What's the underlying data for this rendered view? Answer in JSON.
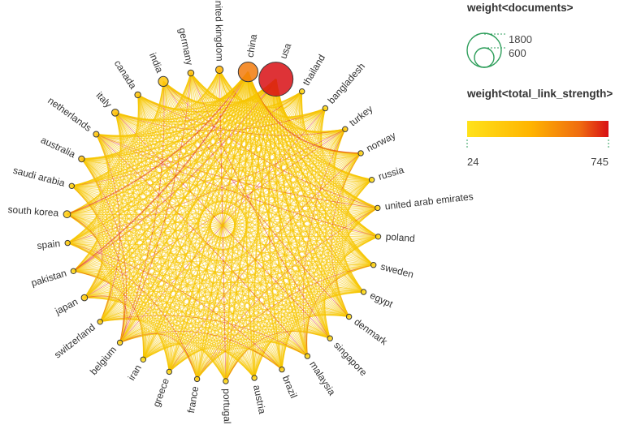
{
  "network": {
    "nodes": [
      {
        "id": "usa",
        "label": "usa",
        "weight_documents": 1800,
        "weight_total_link_strength": 745
      },
      {
        "id": "thailand",
        "label": "thailand",
        "weight_documents": 12,
        "weight_total_link_strength": 60
      },
      {
        "id": "bangladesh",
        "label": "bangladesh",
        "weight_documents": 10,
        "weight_total_link_strength": 55
      },
      {
        "id": "turkey",
        "label": "turkey",
        "weight_documents": 40,
        "weight_total_link_strength": 110
      },
      {
        "id": "norway",
        "label": "norway",
        "weight_documents": 14,
        "weight_total_link_strength": 70
      },
      {
        "id": "russia",
        "label": "russia",
        "weight_documents": 12,
        "weight_total_link_strength": 45
      },
      {
        "id": "uae",
        "label": "united arab emirates",
        "weight_documents": 12,
        "weight_total_link_strength": 60
      },
      {
        "id": "poland",
        "label": "poland",
        "weight_documents": 14,
        "weight_total_link_strength": 55
      },
      {
        "id": "sweden",
        "label": "sweden",
        "weight_documents": 14,
        "weight_total_link_strength": 75
      },
      {
        "id": "egypt",
        "label": "egypt",
        "weight_documents": 12,
        "weight_total_link_strength": 50
      },
      {
        "id": "denmark",
        "label": "denmark",
        "weight_documents": 12,
        "weight_total_link_strength": 60
      },
      {
        "id": "singapore",
        "label": "singapore",
        "weight_documents": 14,
        "weight_total_link_strength": 65
      },
      {
        "id": "malaysia",
        "label": "malaysia",
        "weight_documents": 14,
        "weight_total_link_strength": 55
      },
      {
        "id": "brazil",
        "label": "brazil",
        "weight_documents": 30,
        "weight_total_link_strength": 85
      },
      {
        "id": "austria",
        "label": "austria",
        "weight_documents": 12,
        "weight_total_link_strength": 60
      },
      {
        "id": "portugal",
        "label": "portugal",
        "weight_documents": 14,
        "weight_total_link_strength": 55
      },
      {
        "id": "france",
        "label": "france",
        "weight_documents": 30,
        "weight_total_link_strength": 110
      },
      {
        "id": "greece",
        "label": "greece",
        "weight_documents": 14,
        "weight_total_link_strength": 55
      },
      {
        "id": "iran",
        "label": "iran",
        "weight_documents": 14,
        "weight_total_link_strength": 45
      },
      {
        "id": "belgium",
        "label": "belgium",
        "weight_documents": 12,
        "weight_total_link_strength": 65
      },
      {
        "id": "switzerland",
        "label": "switzerland",
        "weight_documents": 20,
        "weight_total_link_strength": 90
      },
      {
        "id": "japan",
        "label": "japan",
        "weight_documents": 60,
        "weight_total_link_strength": 100
      },
      {
        "id": "pakistan",
        "label": "pakistan",
        "weight_documents": 14,
        "weight_total_link_strength": 50
      },
      {
        "id": "spain",
        "label": "spain",
        "weight_documents": 40,
        "weight_total_link_strength": 105
      },
      {
        "id": "south_korea",
        "label": "south korea",
        "weight_documents": 80,
        "weight_total_link_strength": 90
      },
      {
        "id": "saudi_arabia",
        "label": "saudi arabia",
        "weight_documents": 20,
        "weight_total_link_strength": 85
      },
      {
        "id": "australia",
        "label": "australia",
        "weight_documents": 55,
        "weight_total_link_strength": 140
      },
      {
        "id": "netherlands",
        "label": "netherlands",
        "weight_documents": 50,
        "weight_total_link_strength": 120
      },
      {
        "id": "italy",
        "label": "italy",
        "weight_documents": 75,
        "weight_total_link_strength": 150
      },
      {
        "id": "canada",
        "label": "canada",
        "weight_documents": 55,
        "weight_total_link_strength": 125
      },
      {
        "id": "india",
        "label": "india",
        "weight_documents": 150,
        "weight_total_link_strength": 120
      },
      {
        "id": "germany",
        "label": "germany",
        "weight_documents": 60,
        "weight_total_link_strength": 155
      },
      {
        "id": "united_kingdom",
        "label": "united kingdom",
        "weight_documents": 85,
        "weight_total_link_strength": 210
      },
      {
        "id": "china",
        "label": "china",
        "weight_documents": 600,
        "weight_total_link_strength": 400
      }
    ]
  },
  "legend": {
    "size": {
      "title": "weight<documents>",
      "values": [
        "1800",
        "600"
      ]
    },
    "color": {
      "title": "weight<total_link_strength>",
      "min_label": "24",
      "max_label": "745"
    }
  },
  "colors": {
    "scale": [
      "#FFE21A",
      "#FFB400",
      "#EF6B10",
      "#D80F14"
    ],
    "edge_main": "#F7C600",
    "edge_accent": "#E0331A",
    "size_legend_stroke": "#2E9E5B",
    "node_stroke": "#3A3A3A"
  }
}
